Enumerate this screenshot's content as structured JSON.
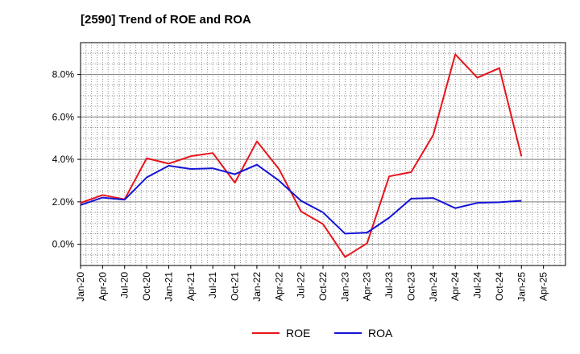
{
  "chart_data": {
    "type": "line",
    "title": "[2590]  Trend of ROE and ROA",
    "categories": [
      "Jan-20",
      "Apr-20",
      "Jul-20",
      "Oct-20",
      "Jan-21",
      "Apr-21",
      "Jul-21",
      "Oct-21",
      "Jan-22",
      "Apr-22",
      "Jul-22",
      "Oct-22",
      "Jan-23",
      "Apr-23",
      "Jul-23",
      "Oct-23",
      "Jan-24",
      "Apr-24",
      "Jul-24",
      "Oct-24",
      "Jan-25",
      "Apr-25"
    ],
    "series": [
      {
        "name": "ROE",
        "color": "#e8141b",
        "values": [
          1.95,
          2.32,
          2.12,
          4.05,
          3.8,
          4.15,
          4.3,
          2.9,
          4.85,
          3.55,
          1.55,
          0.95,
          -0.6,
          0.05,
          3.2,
          3.4,
          5.15,
          8.95,
          7.85,
          8.3,
          4.15,
          null
        ]
      },
      {
        "name": "ROA",
        "color": "#1414d6",
        "values": [
          1.85,
          2.2,
          2.1,
          3.15,
          3.7,
          3.55,
          3.58,
          3.3,
          3.75,
          3.0,
          2.05,
          1.5,
          0.5,
          0.55,
          1.25,
          2.15,
          2.18,
          1.7,
          1.95,
          1.98,
          2.05,
          null
        ]
      }
    ],
    "yticks": [
      "0.0%",
      "2.0%",
      "4.0%",
      "6.0%",
      "8.0%"
    ],
    "ylim": [
      -1.0,
      9.5
    ],
    "grid": true,
    "legend_position": "bottom-center"
  }
}
